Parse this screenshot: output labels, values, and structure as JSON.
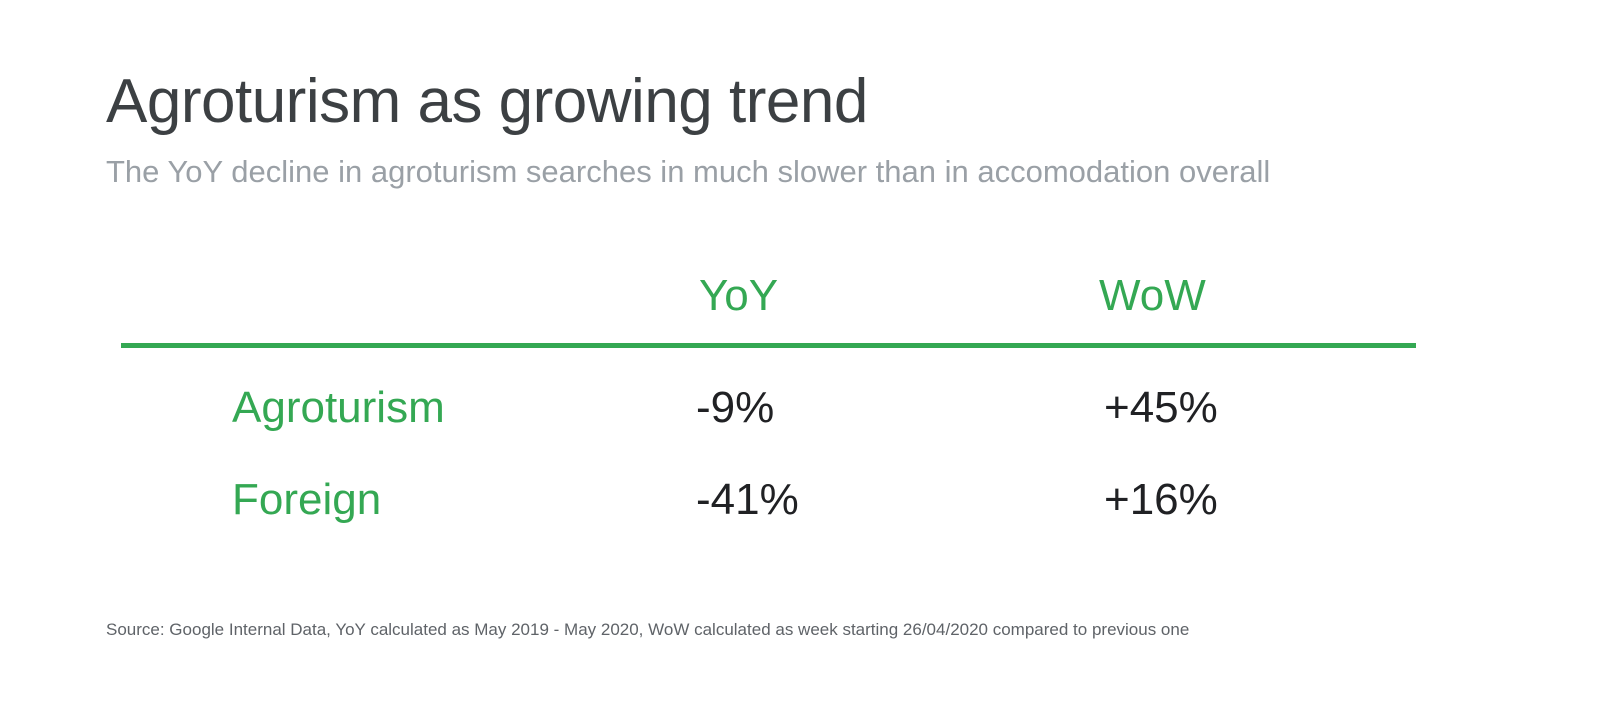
{
  "title": "Agroturism as growing trend",
  "subtitle": "The YoY decline in agroturism searches in much slower than in accomodation overall",
  "source": "Source: Google Internal Data, YoY calculated as May 2019 - May 2020, WoW calculated as week starting 26/04/2020 compared to previous one",
  "colors": {
    "accent": "#34a853",
    "title": "#3c4043",
    "subtitle": "#9aa0a6",
    "value": "#202124",
    "source": "#5f6368"
  },
  "chart_data": {
    "type": "table",
    "columns": [
      "YoY",
      "WoW"
    ],
    "rows": [
      {
        "label": "Agroturism",
        "values": [
          "-9%",
          "+45%"
        ]
      },
      {
        "label": "Foreign",
        "values": [
          "-41%",
          "+16%"
        ]
      }
    ]
  }
}
